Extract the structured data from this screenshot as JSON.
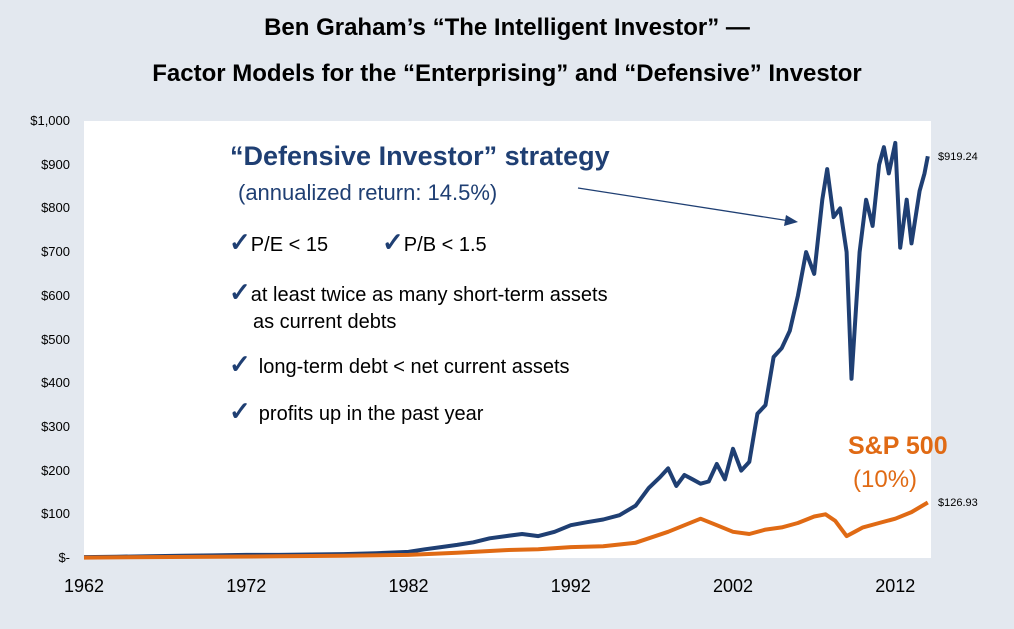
{
  "title_line1": "Ben Graham’s “The Intelligent Investor” —",
  "title_line2": "Factor Models for the “Enterprising” and “Defensive” Investor",
  "annotations": {
    "defensive_title": "“Defensive Investor” strategy",
    "defensive_return": "(annualized return: 14.5%)",
    "check_symbol": "✓",
    "pe": "P/E < 15",
    "pb": "P/B < 1.5",
    "assets_line1": "at least twice as many short-term assets",
    "assets_line2": "as current debts",
    "debt": "long-term debt < net current assets",
    "profits": "profits up in the past year",
    "sp_title": "S&P 500",
    "sp_return": "(10%)",
    "defensive_end_label": "$919.24",
    "sp_end_label": "$126.93"
  },
  "colors": {
    "defensive": "#1f3f73",
    "sp500": "#e06a14",
    "background": "#e3e8ef",
    "plot_bg": "#ffffff"
  },
  "chart_data": {
    "type": "line",
    "ylim": [
      0,
      1000
    ],
    "xlim": [
      1962,
      2014.2
    ],
    "grid": false,
    "x_tick_labels": [
      "1962",
      "1972",
      "1982",
      "1992",
      "2002",
      "2012"
    ],
    "y_tick_labels": [
      "$-",
      "$100",
      "$200",
      "$300",
      "$400",
      "$500",
      "$600",
      "$700",
      "$800",
      "$900",
      "$1,000"
    ],
    "series": [
      {
        "name": "“Defensive Investor” strategy",
        "x": [
          1962,
          1964,
          1966,
          1968,
          1970,
          1972,
          1974,
          1976,
          1978,
          1980,
          1982,
          1983,
          1984,
          1985,
          1986,
          1987,
          1988,
          1989,
          1990,
          1991,
          1992,
          1993,
          1994,
          1995,
          1996,
          1996.8,
          1997.5,
          1998,
          1998.5,
          1999,
          1999.5,
          2000,
          2000.5,
          2001,
          2001.5,
          2002,
          2002.5,
          2003,
          2003.5,
          2004,
          2004.5,
          2005,
          2005.5,
          2006,
          2006.5,
          2007,
          2007.5,
          2007.8,
          2008.2,
          2008.6,
          2009.0,
          2009.3,
          2009.8,
          2010.2,
          2010.6,
          2011.0,
          2011.3,
          2011.6,
          2012.0,
          2012.3,
          2012.7,
          2013.0,
          2013.5,
          2013.8,
          2014.0
        ],
        "values": [
          2,
          3,
          4,
          5,
          6,
          7,
          7,
          8,
          9,
          11,
          14,
          20,
          25,
          30,
          36,
          45,
          50,
          55,
          50,
          60,
          75,
          82,
          88,
          98,
          120,
          160,
          185,
          205,
          165,
          190,
          180,
          170,
          175,
          215,
          180,
          250,
          200,
          220,
          330,
          350,
          460,
          480,
          520,
          600,
          700,
          650,
          820,
          890,
          780,
          800,
          700,
          410,
          700,
          820,
          760,
          900,
          940,
          880,
          950,
          710,
          820,
          720,
          840,
          880,
          919.24
        ]
      },
      {
        "name": "S&P 500",
        "x": [
          1962,
          1966,
          1970,
          1974,
          1978,
          1982,
          1985,
          1988,
          1990,
          1992,
          1994,
          1996,
          1998,
          2000,
          2001,
          2002,
          2003,
          2004,
          2005,
          2006,
          2007,
          2007.7,
          2008.3,
          2009.0,
          2009.5,
          2010,
          2011,
          2012,
          2013,
          2014.0
        ],
        "values": [
          1,
          2,
          3,
          4,
          5,
          7,
          12,
          18,
          20,
          25,
          27,
          35,
          60,
          90,
          75,
          60,
          55,
          65,
          70,
          80,
          95,
          100,
          85,
          50,
          60,
          70,
          80,
          90,
          105,
          126.93
        ]
      }
    ]
  }
}
